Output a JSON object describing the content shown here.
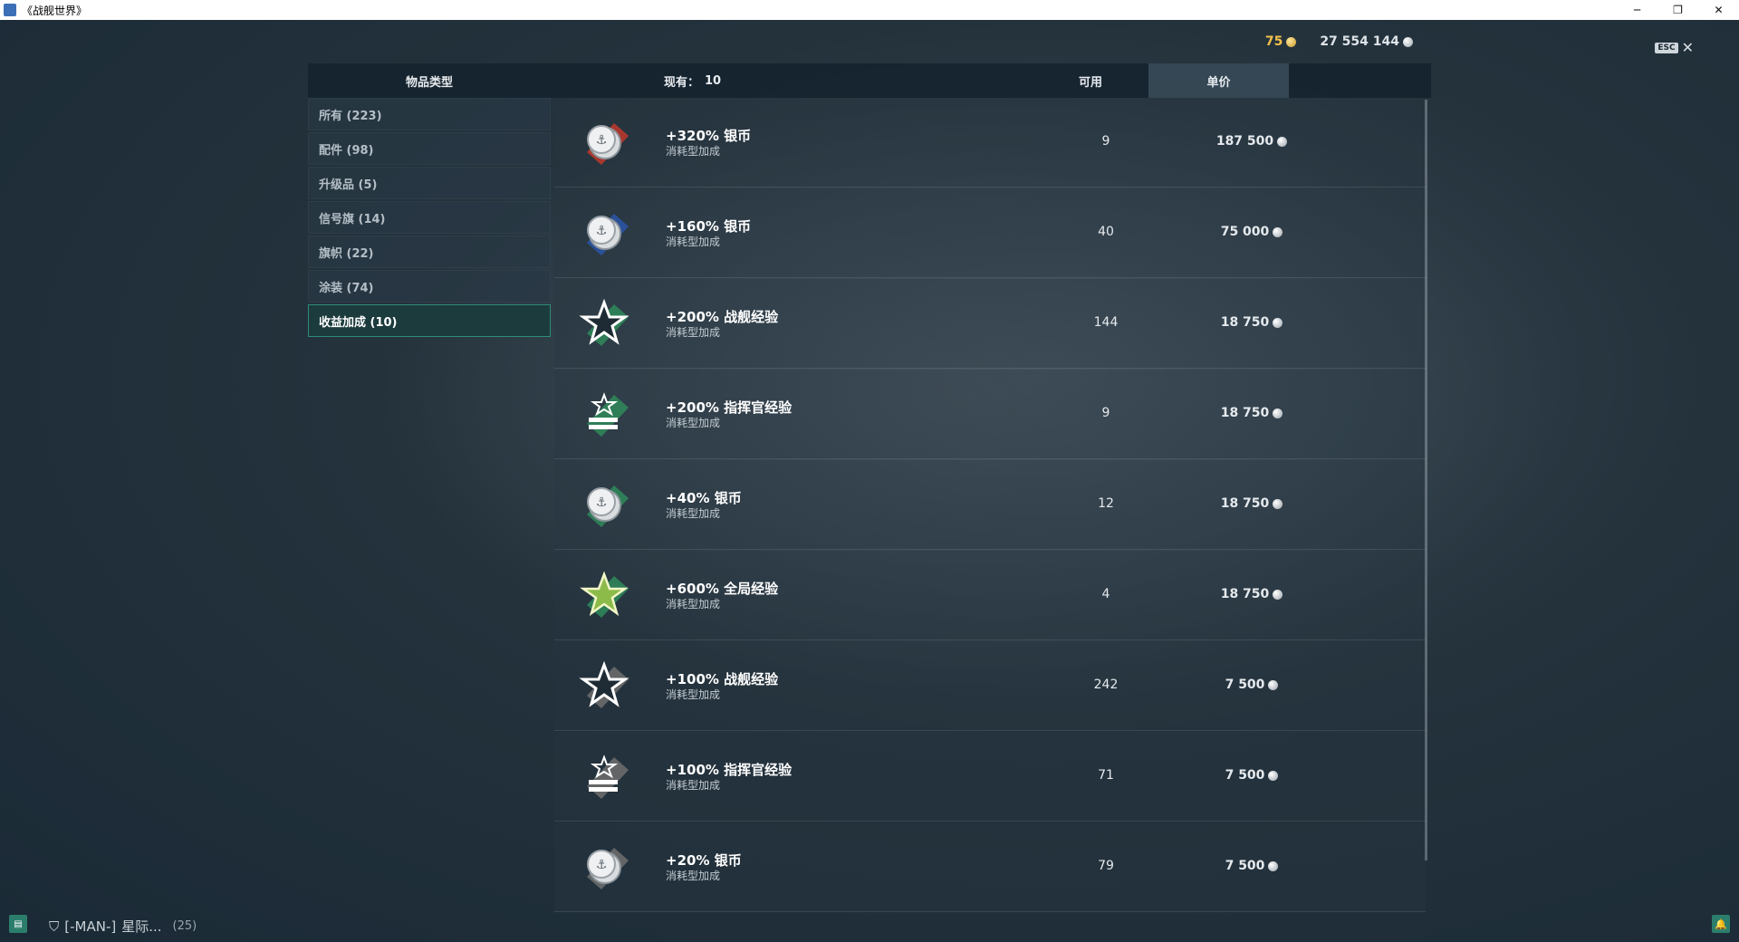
{
  "window": {
    "title": "《战舰世界》",
    "minimize_glyph": "─",
    "restore_glyph": "❐",
    "close_glyph": "✕"
  },
  "currency": {
    "gold": "75",
    "silver": "27 554 144"
  },
  "esc": {
    "key_label": "ESC",
    "close_glyph": "✕"
  },
  "header": {
    "type_label": "物品类型",
    "have_label": "现有：",
    "have_count": "10",
    "available_label": "可用",
    "price_label": "单价"
  },
  "categories": [
    {
      "label": "所有 (223)",
      "active": false
    },
    {
      "label": "配件 (98)",
      "active": false
    },
    {
      "label": "升级品 (5)",
      "active": false
    },
    {
      "label": "信号旗 (14)",
      "active": false
    },
    {
      "label": "旗帜 (22)",
      "active": false
    },
    {
      "label": "涂装 (74)",
      "active": false
    },
    {
      "label": "收益加成 (10)",
      "active": true
    }
  ],
  "items": [
    {
      "name": "+320% 银币",
      "type": "消耗型加成",
      "available": "9",
      "price": "187 500",
      "icon": "silver-coin-icon",
      "accent": "#c0392b"
    },
    {
      "name": "+160% 银币",
      "type": "消耗型加成",
      "available": "40",
      "price": "75 000",
      "icon": "silver-coin-icon",
      "accent": "#2a56a8"
    },
    {
      "name": "+200% 战舰经验",
      "type": "消耗型加成",
      "available": "144",
      "price": "18 750",
      "icon": "star-icon",
      "accent": "#2f8a5a"
    },
    {
      "name": "+200% 指挥官经验",
      "type": "消耗型加成",
      "available": "9",
      "price": "18 750",
      "icon": "commander-star-icon",
      "accent": "#2f8a5a"
    },
    {
      "name": "+40% 银币",
      "type": "消耗型加成",
      "available": "12",
      "price": "18 750",
      "icon": "silver-coin-icon",
      "accent": "#2f8a5a"
    },
    {
      "name": "+600% 全局经验",
      "type": "消耗型加成",
      "available": "4",
      "price": "18 750",
      "icon": "gold-star-icon",
      "accent": "#2f8a5a"
    },
    {
      "name": "+100% 战舰经验",
      "type": "消耗型加成",
      "available": "242",
      "price": "7 500",
      "icon": "star-icon",
      "accent": "#6f6f6f"
    },
    {
      "name": "+100% 指挥官经验",
      "type": "消耗型加成",
      "available": "71",
      "price": "7 500",
      "icon": "commander-star-icon",
      "accent": "#6f6f6f"
    },
    {
      "name": "+20% 银币",
      "type": "消耗型加成",
      "available": "79",
      "price": "7 500",
      "icon": "silver-coin-icon",
      "accent": "#6f6f6f"
    }
  ],
  "bottom": {
    "clan_tag": "[-MAN-]",
    "clan_name": "星际...",
    "clan_count": "(25)"
  }
}
